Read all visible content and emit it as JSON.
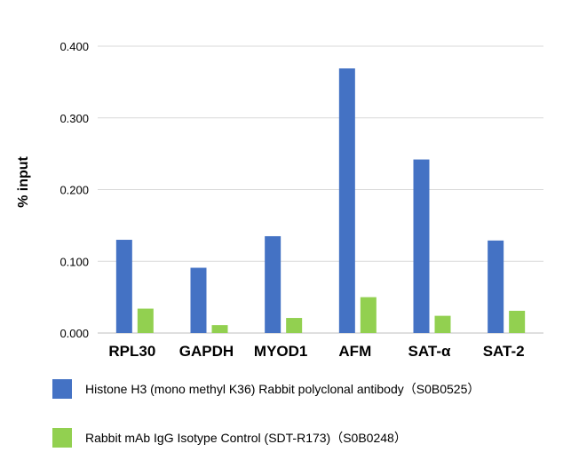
{
  "chart_data": {
    "type": "bar",
    "ylabel": "% input",
    "xlabel": "",
    "ylim": [
      0,
      0.4
    ],
    "yticks": [
      "0.000",
      "0.100",
      "0.200",
      "0.300",
      "0.400"
    ],
    "grid": true,
    "legend_position": "bottom",
    "categories": [
      "RPL30",
      "GAPDH",
      "MYOD1",
      "AFM",
      "SAT-α",
      "SAT-2"
    ],
    "series": [
      {
        "name": "Histone H3 (mono methyl K36) Rabbit polyclonal antibody（S0B0525）",
        "color": "#4472C4",
        "values": [
          0.13,
          0.091,
          0.135,
          0.369,
          0.242,
          0.129
        ]
      },
      {
        "name": "Rabbit mAb IgG Isotype Control (SDT-R173)（S0B0248）",
        "color": "#92D050",
        "values": [
          0.034,
          0.011,
          0.021,
          0.05,
          0.024,
          0.031
        ]
      }
    ]
  }
}
